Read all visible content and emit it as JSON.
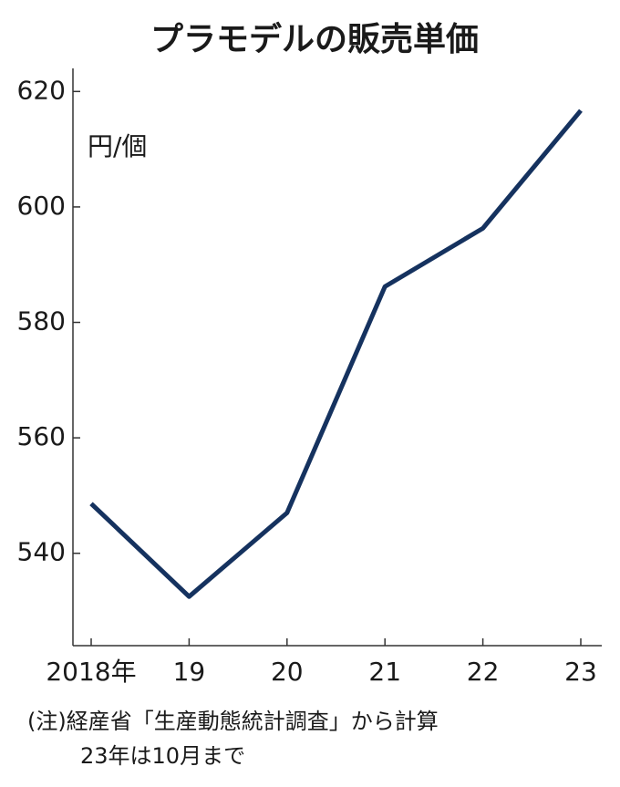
{
  "chart_data": {
    "type": "line",
    "title": "プラモデルの販売単価",
    "y_label": "円/個",
    "categories": [
      "2018年",
      "19",
      "20",
      "21",
      "22",
      "23"
    ],
    "series": [
      {
        "name": "販売単価",
        "color": "#15325f",
        "values": [
          548.6,
          532.5,
          547,
          586.2,
          596.3,
          616.7
        ]
      }
    ],
    "ylim": [
      524,
      624
    ],
    "yticks": [
      540,
      560,
      580,
      600,
      620
    ],
    "notes": [
      "(注)経産省「生産動態統計調査」から計算",
      "23年は10月まで"
    ]
  }
}
